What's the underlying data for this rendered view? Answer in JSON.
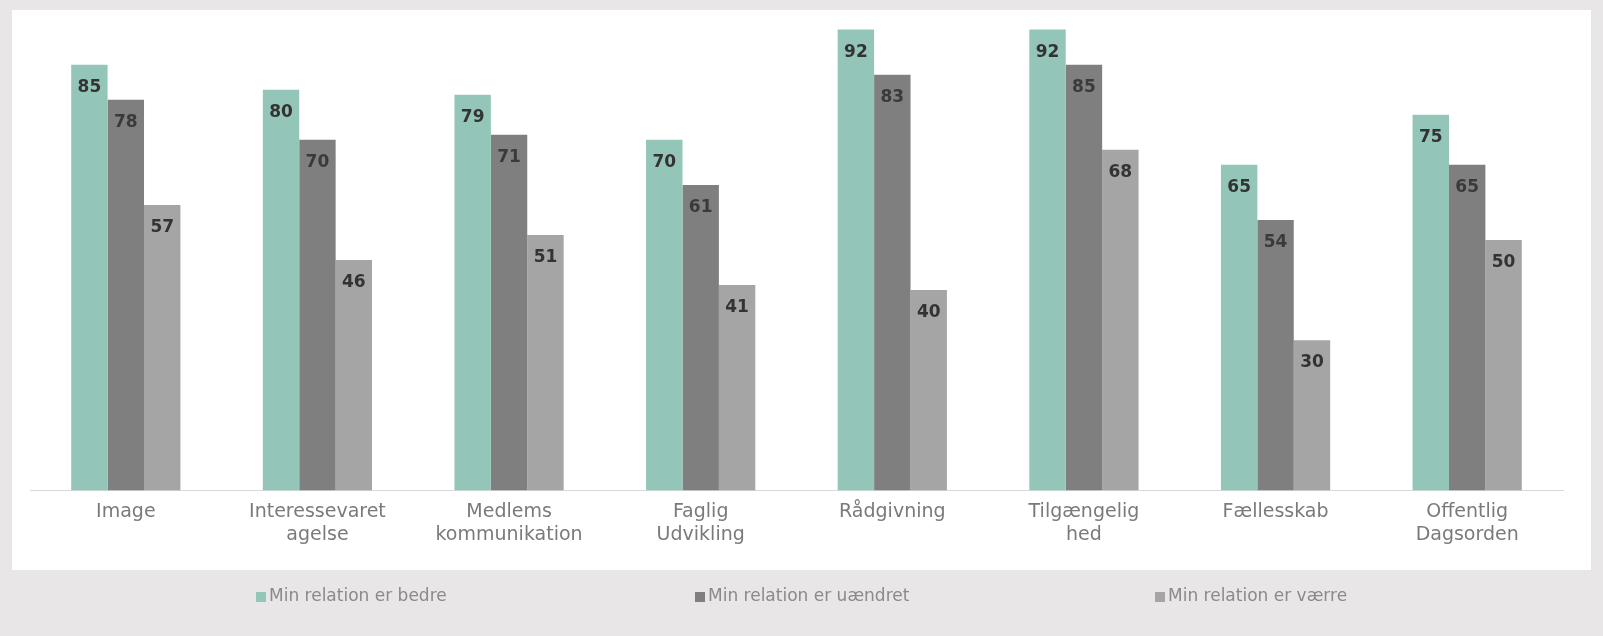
{
  "chart_data": {
    "type": "bar",
    "categories": [
      "Image",
      "Interessevaret agelse",
      "Medlems kommunikation",
      "Faglig Udvikling",
      "Rådgivning",
      "Tilgængelig hed",
      "Fællesskab",
      "Offentlig Dagsorden"
    ],
    "series": [
      {
        "name": "Min relation er bedre",
        "color": "#93c5b8",
        "values": [
          85,
          80,
          79,
          70,
          92,
          92,
          65,
          75
        ]
      },
      {
        "name": "Min relation er uændret",
        "color": "#7f7f7f",
        "values": [
          78,
          70,
          71,
          61,
          83,
          85,
          54,
          65
        ]
      },
      {
        "name": "Min relation er værre",
        "color": "#a5a5a5",
        "values": [
          57,
          46,
          51,
          41,
          40,
          68,
          30,
          50
        ]
      }
    ],
    "data_labels": true,
    "legend": "bottom",
    "grid": false
  }
}
